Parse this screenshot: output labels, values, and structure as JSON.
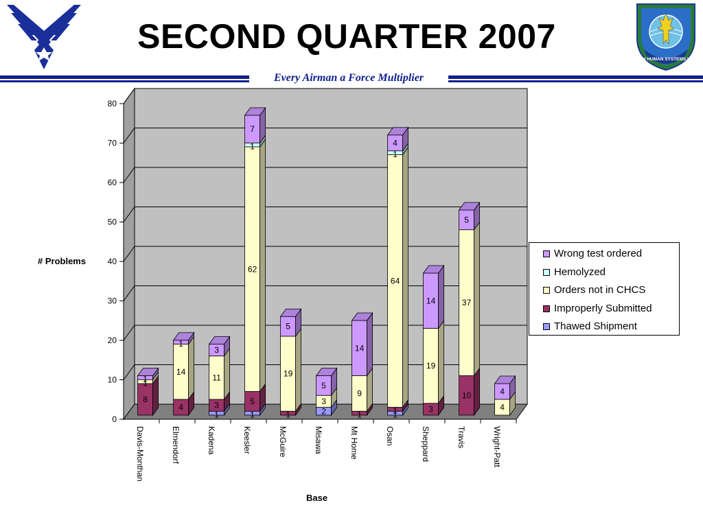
{
  "header": {
    "title": "SECOND QUARTER 2007",
    "tagline": "Every Airman a Force Multiplier"
  },
  "logos": {
    "left": "air-force-symbol",
    "right": "311th Human Systems Wing emblem",
    "right_text": "311TH HUMAN SYSTEMS WING"
  },
  "chart_data": {
    "type": "bar",
    "stacked": true,
    "three_d": true,
    "categories": [
      "Davis-Monthan",
      "Elmendorf",
      "Kadena",
      "Keesler",
      "McGuire",
      "Misawa",
      "Mt Home",
      "Osan",
      "Sheppard",
      "Travis",
      "Wright-Patt"
    ],
    "series": [
      {
        "name": "Thawed Shipment",
        "color": "#9999ff",
        "values": [
          0,
          0,
          1,
          1,
          0,
          2,
          0,
          1,
          0,
          0,
          0
        ],
        "labels": [
          "",
          "",
          "1",
          "1",
          "",
          "2",
          "",
          "1",
          "",
          "",
          ""
        ]
      },
      {
        "name": "Improperly Submitted",
        "color": "#993366",
        "values": [
          8,
          4,
          3,
          5,
          1,
          0,
          1,
          1,
          3,
          10,
          0
        ],
        "labels": [
          "8",
          "4",
          "3",
          "5",
          "1",
          "",
          "1",
          "1",
          "3",
          "10",
          ""
        ]
      },
      {
        "name": "Orders not in CHCS",
        "color": "#ffffcc",
        "values": [
          1,
          14,
          11,
          62,
          19,
          3,
          9,
          64,
          19,
          37,
          4
        ],
        "labels": [
          "1",
          "14",
          "11",
          "62",
          "19",
          "3",
          "9",
          "64",
          "19",
          "37",
          "4"
        ]
      },
      {
        "name": "Hemolyzed",
        "color": "#ccffff",
        "values": [
          0,
          0,
          0,
          1,
          0,
          0,
          0,
          1,
          0,
          0,
          0
        ],
        "labels": [
          "",
          "",
          "",
          "1",
          "",
          "",
          "",
          "1",
          "",
          "",
          ""
        ]
      },
      {
        "name": "Wrong test ordered",
        "color": "#cc99ff",
        "values": [
          1,
          1,
          3,
          7,
          5,
          5,
          14,
          4,
          14,
          5,
          4
        ],
        "labels": [
          "1",
          "1",
          "3",
          "7",
          "5",
          "5",
          "14",
          "4",
          "14",
          "5",
          "4"
        ]
      }
    ],
    "xlabel": "Base",
    "ylabel": "# Problems",
    "ylim": [
      0,
      80
    ],
    "yticks": [
      "0",
      "10",
      "20",
      "30",
      "40",
      "50",
      "60",
      "70",
      "80"
    ],
    "grid": true,
    "legend_position": "right",
    "legend_order": [
      "Wrong test ordered",
      "Hemolyzed",
      "Orders not in CHCS",
      "Improperly Submitted",
      "Thawed Shipment"
    ]
  }
}
